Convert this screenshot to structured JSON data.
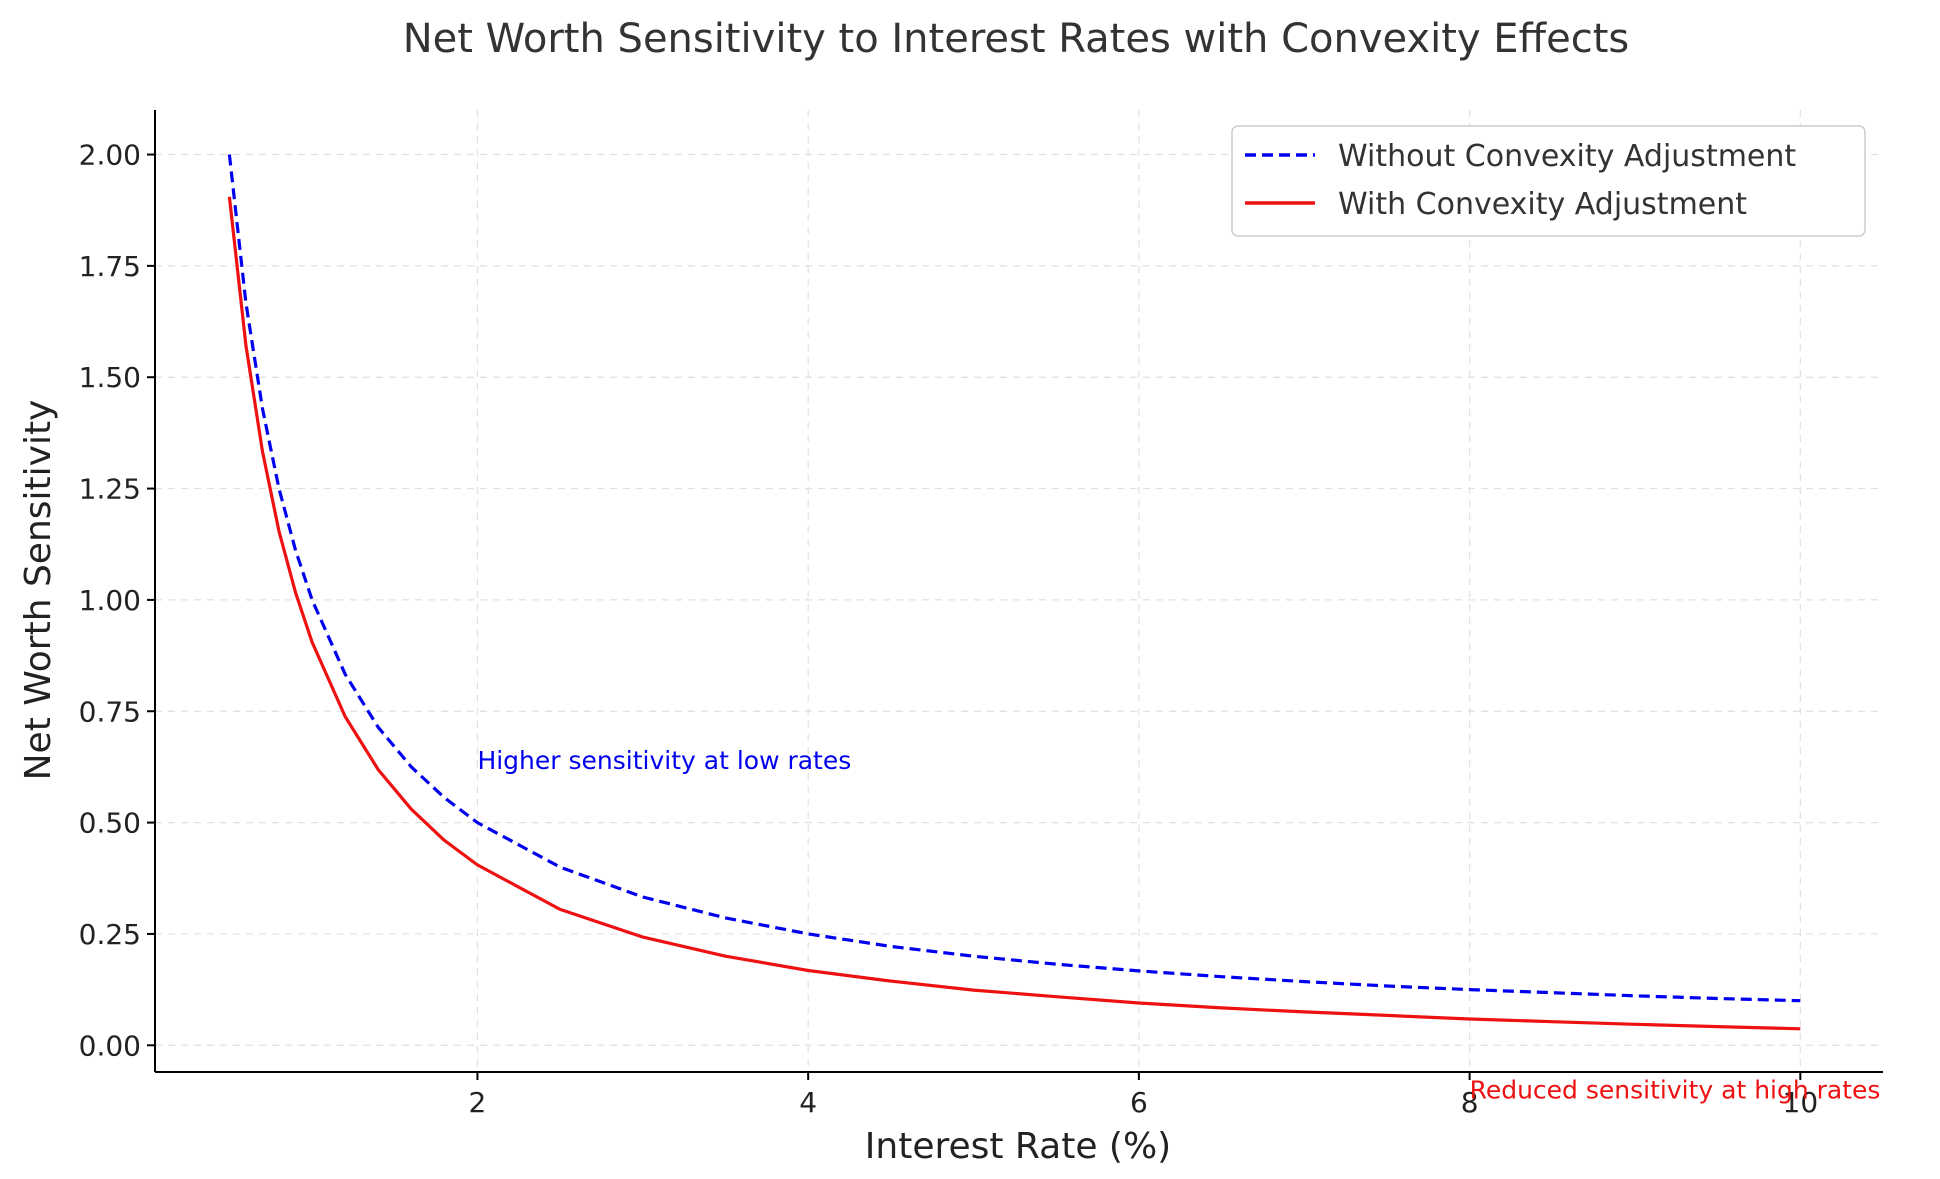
{
  "chart_data": {
    "type": "line",
    "title": "Net Worth Sensitivity to Interest Rates with Convexity Effects",
    "xlabel": "Interest Rate (%)",
    "ylabel": "Net Worth Sensitivity",
    "xlim": [
      0.05,
      10.5
    ],
    "ylim": [
      -0.06,
      2.1
    ],
    "x_ticks": [
      2,
      4,
      6,
      8,
      10
    ],
    "x_tick_labels": [
      "2",
      "4",
      "6",
      "8",
      "10"
    ],
    "y_ticks": [
      0,
      0.25,
      0.5,
      0.75,
      1.0,
      1.25,
      1.5,
      1.75,
      2.0
    ],
    "y_tick_labels": [
      "0.00",
      "0.25",
      "0.50",
      "0.75",
      "1.00",
      "1.25",
      "1.50",
      "1.75",
      "2.00"
    ],
    "grid": true,
    "legend_position": "top-right",
    "x": [
      0.5,
      0.6,
      0.7,
      0.8,
      0.9,
      1.0,
      1.2,
      1.4,
      1.6,
      1.8,
      2.0,
      2.5,
      3.0,
      3.5,
      4.0,
      4.5,
      5.0,
      5.5,
      6.0,
      6.5,
      7.0,
      7.5,
      8.0,
      8.5,
      9.0,
      9.5,
      10.0
    ],
    "series": [
      {
        "name": "Without Convexity Adjustment",
        "color": "#0000ee",
        "line_style": "dashed",
        "values": [
          2.0,
          1.667,
          1.429,
          1.25,
          1.111,
          1.0,
          0.833,
          0.714,
          0.625,
          0.556,
          0.5,
          0.4,
          0.333,
          0.286,
          0.25,
          0.222,
          0.2,
          0.182,
          0.167,
          0.154,
          0.143,
          0.133,
          0.125,
          0.118,
          0.111,
          0.105,
          0.1
        ]
      },
      {
        "name": "With Convexity Adjustment",
        "color": "#ee1111",
        "line_style": "solid",
        "values": [
          1.905,
          1.572,
          1.333,
          1.154,
          1.016,
          0.905,
          0.738,
          0.619,
          0.53,
          0.46,
          0.405,
          0.305,
          0.243,
          0.2,
          0.168,
          0.144,
          0.124,
          0.109,
          0.095,
          0.084,
          0.075,
          0.067,
          0.059,
          0.053,
          0.047,
          0.042,
          0.037
        ]
      }
    ],
    "annotations": [
      {
        "text": "Higher sensitivity at low rates",
        "x": 2.0,
        "y": 0.62,
        "color": "#0000ee"
      },
      {
        "text": "Reduced sensitivity at high rates",
        "x": 8.0,
        "y": -0.12,
        "color": "#ee1111"
      }
    ]
  }
}
